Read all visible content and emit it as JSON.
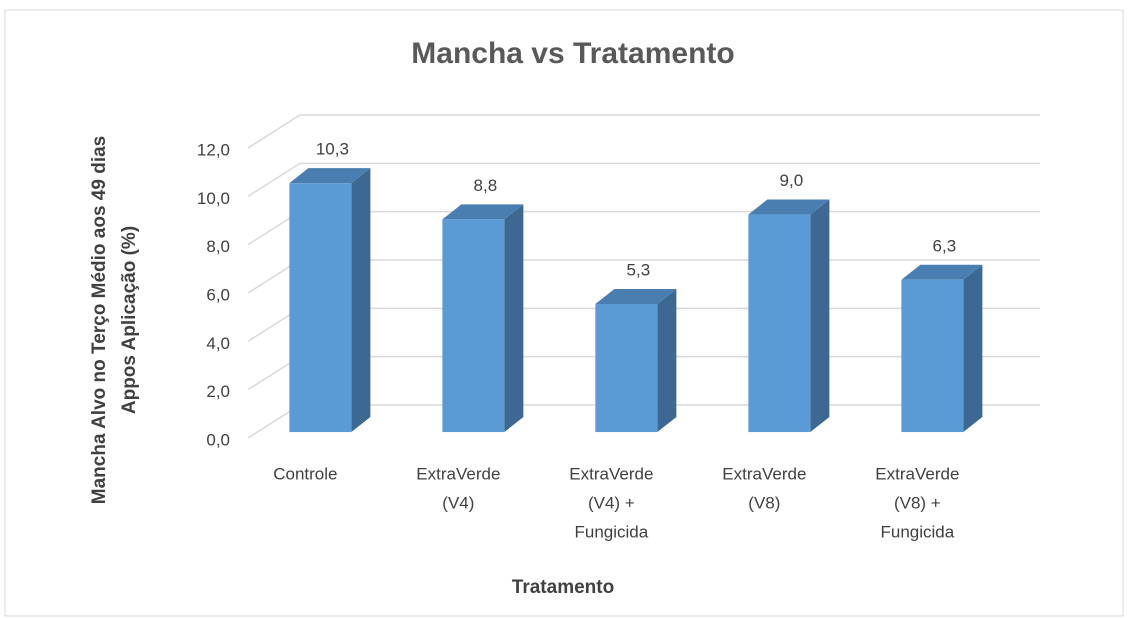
{
  "chart_data": {
    "type": "bar3d",
    "title": "Mancha vs Tratamento",
    "x_label": "Tratamento",
    "y_label": [
      "Mancha Alvo no Terço Médio aos 49 dias",
      "Appos Aplicação (%)"
    ],
    "categories": [
      [
        "Controle"
      ],
      [
        "ExtraVerde",
        "(V4)"
      ],
      [
        "ExtraVerde",
        "(V4) +",
        "Fungicida"
      ],
      [
        "ExtraVerde",
        "(V8)"
      ],
      [
        "ExtraVerde",
        "(V8) +",
        "Fungicida"
      ]
    ],
    "values": [
      10.3,
      8.8,
      5.3,
      9.0,
      6.3
    ],
    "value_labels": [
      "10,3",
      "8,8",
      "5,3",
      "9,0",
      "6,3"
    ],
    "color": "#5b9bd5",
    "ylim": [
      0,
      12
    ],
    "yticks": [
      {
        "value": 0,
        "label": "0,0"
      },
      {
        "value": 2,
        "label": "2,0"
      },
      {
        "value": 4,
        "label": "4,0"
      },
      {
        "value": 6,
        "label": "6,0"
      },
      {
        "value": 8,
        "label": "8,0"
      },
      {
        "value": 10,
        "label": "10,0"
      },
      {
        "value": 12,
        "label": "12,0"
      }
    ],
    "grid": true
  }
}
